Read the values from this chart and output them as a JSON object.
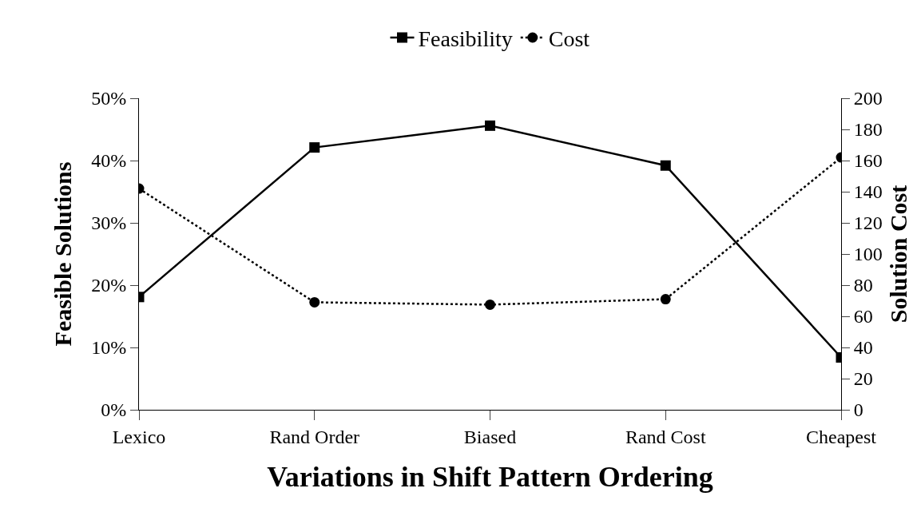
{
  "chart_data": {
    "type": "line",
    "xlabel": "Variations in Shift Pattern Ordering",
    "ylabel": "Feasible Solutions",
    "y2label": "Solution Cost",
    "categories": [
      "Lexico",
      "Rand Order",
      "Biased",
      "Rand Cost",
      "Cheapest"
    ],
    "series": [
      {
        "name": "Feasibility",
        "color": "#000000",
        "values": [
          18.1,
          42.1,
          45.6,
          39.2,
          8.4
        ],
        "marker": "square",
        "line_style": "solid"
      },
      {
        "name": "Cost",
        "color": "#000000",
        "values": [
          142,
          69,
          67.5,
          71,
          162
        ],
        "marker": "circle",
        "line_style": "dotted",
        "axis": "y2"
      }
    ],
    "ylim": [
      0,
      50
    ],
    "yticks": [
      {
        "value": 0,
        "label": "0%"
      },
      {
        "value": 10,
        "label": "10%"
      },
      {
        "value": 20,
        "label": "20%"
      },
      {
        "value": 30,
        "label": "30%"
      },
      {
        "value": 40,
        "label": "40%"
      },
      {
        "value": 50,
        "label": "50%"
      }
    ],
    "y2lim": [
      0,
      200
    ],
    "y2ticks": [
      0,
      20,
      40,
      60,
      80,
      100,
      120,
      140,
      160,
      180,
      200
    ],
    "grid": false,
    "legend": "top"
  }
}
